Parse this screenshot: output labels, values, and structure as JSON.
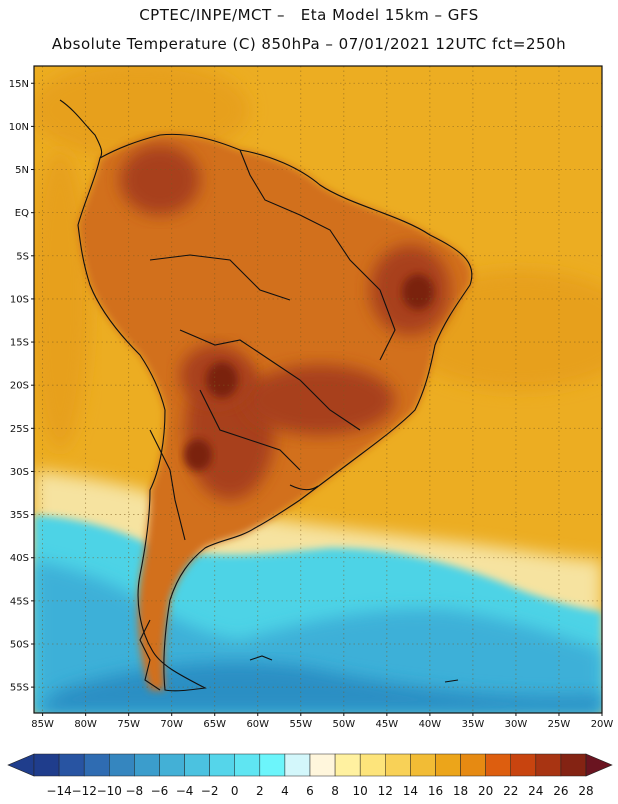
{
  "header": {
    "line1": "CPTEC/INPE/MCT –   Eta Model 15km – GFS",
    "line2": "Absolute Temperature (C) 850hPa – 07/01/2021 12UTC fct=250h"
  },
  "map": {
    "lat_labels": [
      "15N",
      "10N",
      "5N",
      "EQ",
      "5S",
      "10S",
      "15S",
      "20S",
      "25S",
      "30S",
      "35S",
      "40S",
      "45S",
      "50S",
      "55S"
    ],
    "lon_labels": [
      "85W",
      "80W",
      "75W",
      "70W",
      "65W",
      "60W",
      "55W",
      "50W",
      "45W",
      "40W",
      "35W",
      "30W",
      "25W",
      "20W"
    ],
    "lat_range": [
      17,
      -58
    ],
    "lon_range": [
      -86,
      -20
    ],
    "grid": "dotted",
    "colors": {
      "ocean_bg": "#ecad22",
      "land_bg": "#d2701f",
      "warm_core": "#a8401c",
      "hot_spot": "#7a2210",
      "cool_band": "#f6e3a0",
      "cold_cyan": "#4ed3e6",
      "cold_blue": "#2a8fc4",
      "coast": "#101010"
    }
  },
  "colorbar": {
    "labels": [
      "-14",
      "-12",
      "-10",
      "-8",
      "-6",
      "-4",
      "-2",
      "0",
      "2",
      "4",
      "6",
      "8",
      "10",
      "12",
      "14",
      "16",
      "18",
      "20",
      "22",
      "24",
      "26",
      "28"
    ],
    "colors": [
      "#1f3d8c",
      "#2854a2",
      "#2f6cb2",
      "#3586bf",
      "#3b9dcc",
      "#43b0d6",
      "#4bc2e0",
      "#55d5ea",
      "#5fe5f2",
      "#6cf5fb",
      "#d3f7fb",
      "#fff6dc",
      "#fff1a0",
      "#fde47b",
      "#f8d157",
      "#f2bc35",
      "#eca51a",
      "#e68a12",
      "#dd5e0f",
      "#c8440f",
      "#a83412",
      "#842313",
      "#6a1420"
    ]
  }
}
